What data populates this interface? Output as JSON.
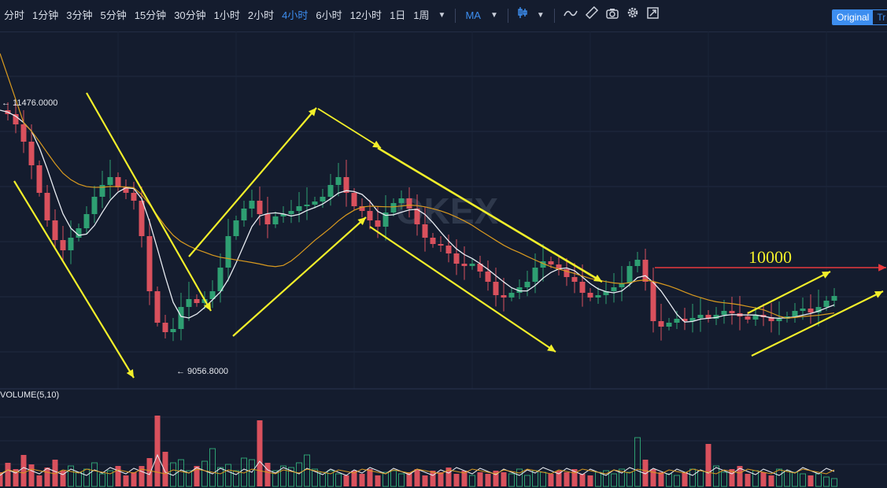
{
  "toolbar": {
    "timeframes": [
      {
        "label": "分时",
        "active": false
      },
      {
        "label": "1分钟",
        "active": false
      },
      {
        "label": "3分钟",
        "active": false
      },
      {
        "label": "5分钟",
        "active": false
      },
      {
        "label": "15分钟",
        "active": false
      },
      {
        "label": "30分钟",
        "active": false
      },
      {
        "label": "1小时",
        "active": false
      },
      {
        "label": "2小时",
        "active": false
      },
      {
        "label": "4小时",
        "active": true
      },
      {
        "label": "6小时",
        "active": false
      },
      {
        "label": "12小时",
        "active": false
      },
      {
        "label": "1日",
        "active": false
      },
      {
        "label": "1周",
        "active": false
      }
    ],
    "indicator_label": "MA",
    "icons": [
      "chevron-down-icon",
      "candlestick-icon",
      "wave-icon",
      "ruler-icon",
      "camera-icon",
      "gear-icon",
      "fullscreen-icon"
    ],
    "view_original": "Original",
    "view_tradingview": "Tr"
  },
  "watermark": "OKEX",
  "chart_data": {
    "type": "candlestick",
    "high_label": "← 11476.0000",
    "low_label": "← 9056.8000",
    "annotation_level": "10000",
    "colors": {
      "up": "#2e9f72",
      "down": "#d9515d",
      "ma_fast": "#e8ecf2",
      "ma_slow": "#d99a1f",
      "arrows": "#f2ef2a",
      "level_line": "#e8393d"
    },
    "volume_label": "VOLUME(5,10)"
  }
}
